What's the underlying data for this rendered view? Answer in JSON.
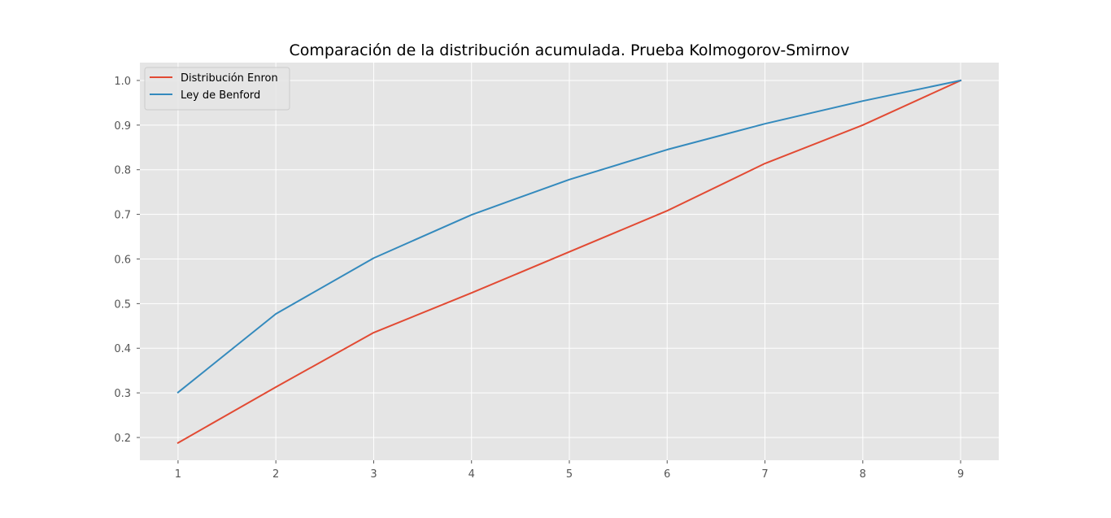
{
  "chart_data": {
    "type": "line",
    "title": "Comparación de la distribución acumulada. Prueba Kolmogorov-Smirnov",
    "xlabel": "",
    "ylabel": "",
    "x": [
      1,
      2,
      3,
      4,
      5,
      6,
      7,
      8,
      9
    ],
    "xlim": [
      0.61,
      9.39
    ],
    "ylim": [
      0.149,
      1.04
    ],
    "xticks": [
      "1",
      "2",
      "3",
      "4",
      "5",
      "6",
      "7",
      "8",
      "9"
    ],
    "yticks": [
      "0.2",
      "0.3",
      "0.4",
      "0.5",
      "0.6",
      "0.7",
      "0.8",
      "0.9",
      "1.0"
    ],
    "ytick_values": [
      0.2,
      0.3,
      0.4,
      0.5,
      0.6,
      0.7,
      0.8,
      0.9,
      1.0
    ],
    "grid": true,
    "legend_position": "top-left",
    "series": [
      {
        "name": "Distribución Enron",
        "color": "#E24A33",
        "values": [
          0.188,
          0.313,
          0.435,
          0.524,
          0.616,
          0.708,
          0.814,
          0.9,
          1.0
        ]
      },
      {
        "name": "Ley de Benford",
        "color": "#348ABD",
        "values": [
          0.301,
          0.477,
          0.602,
          0.699,
          0.778,
          0.845,
          0.903,
          0.954,
          1.0
        ]
      }
    ],
    "colors": {
      "plot_background": "#E5E5E5",
      "grid": "#FFFFFF",
      "tick_label": "#555555"
    }
  }
}
